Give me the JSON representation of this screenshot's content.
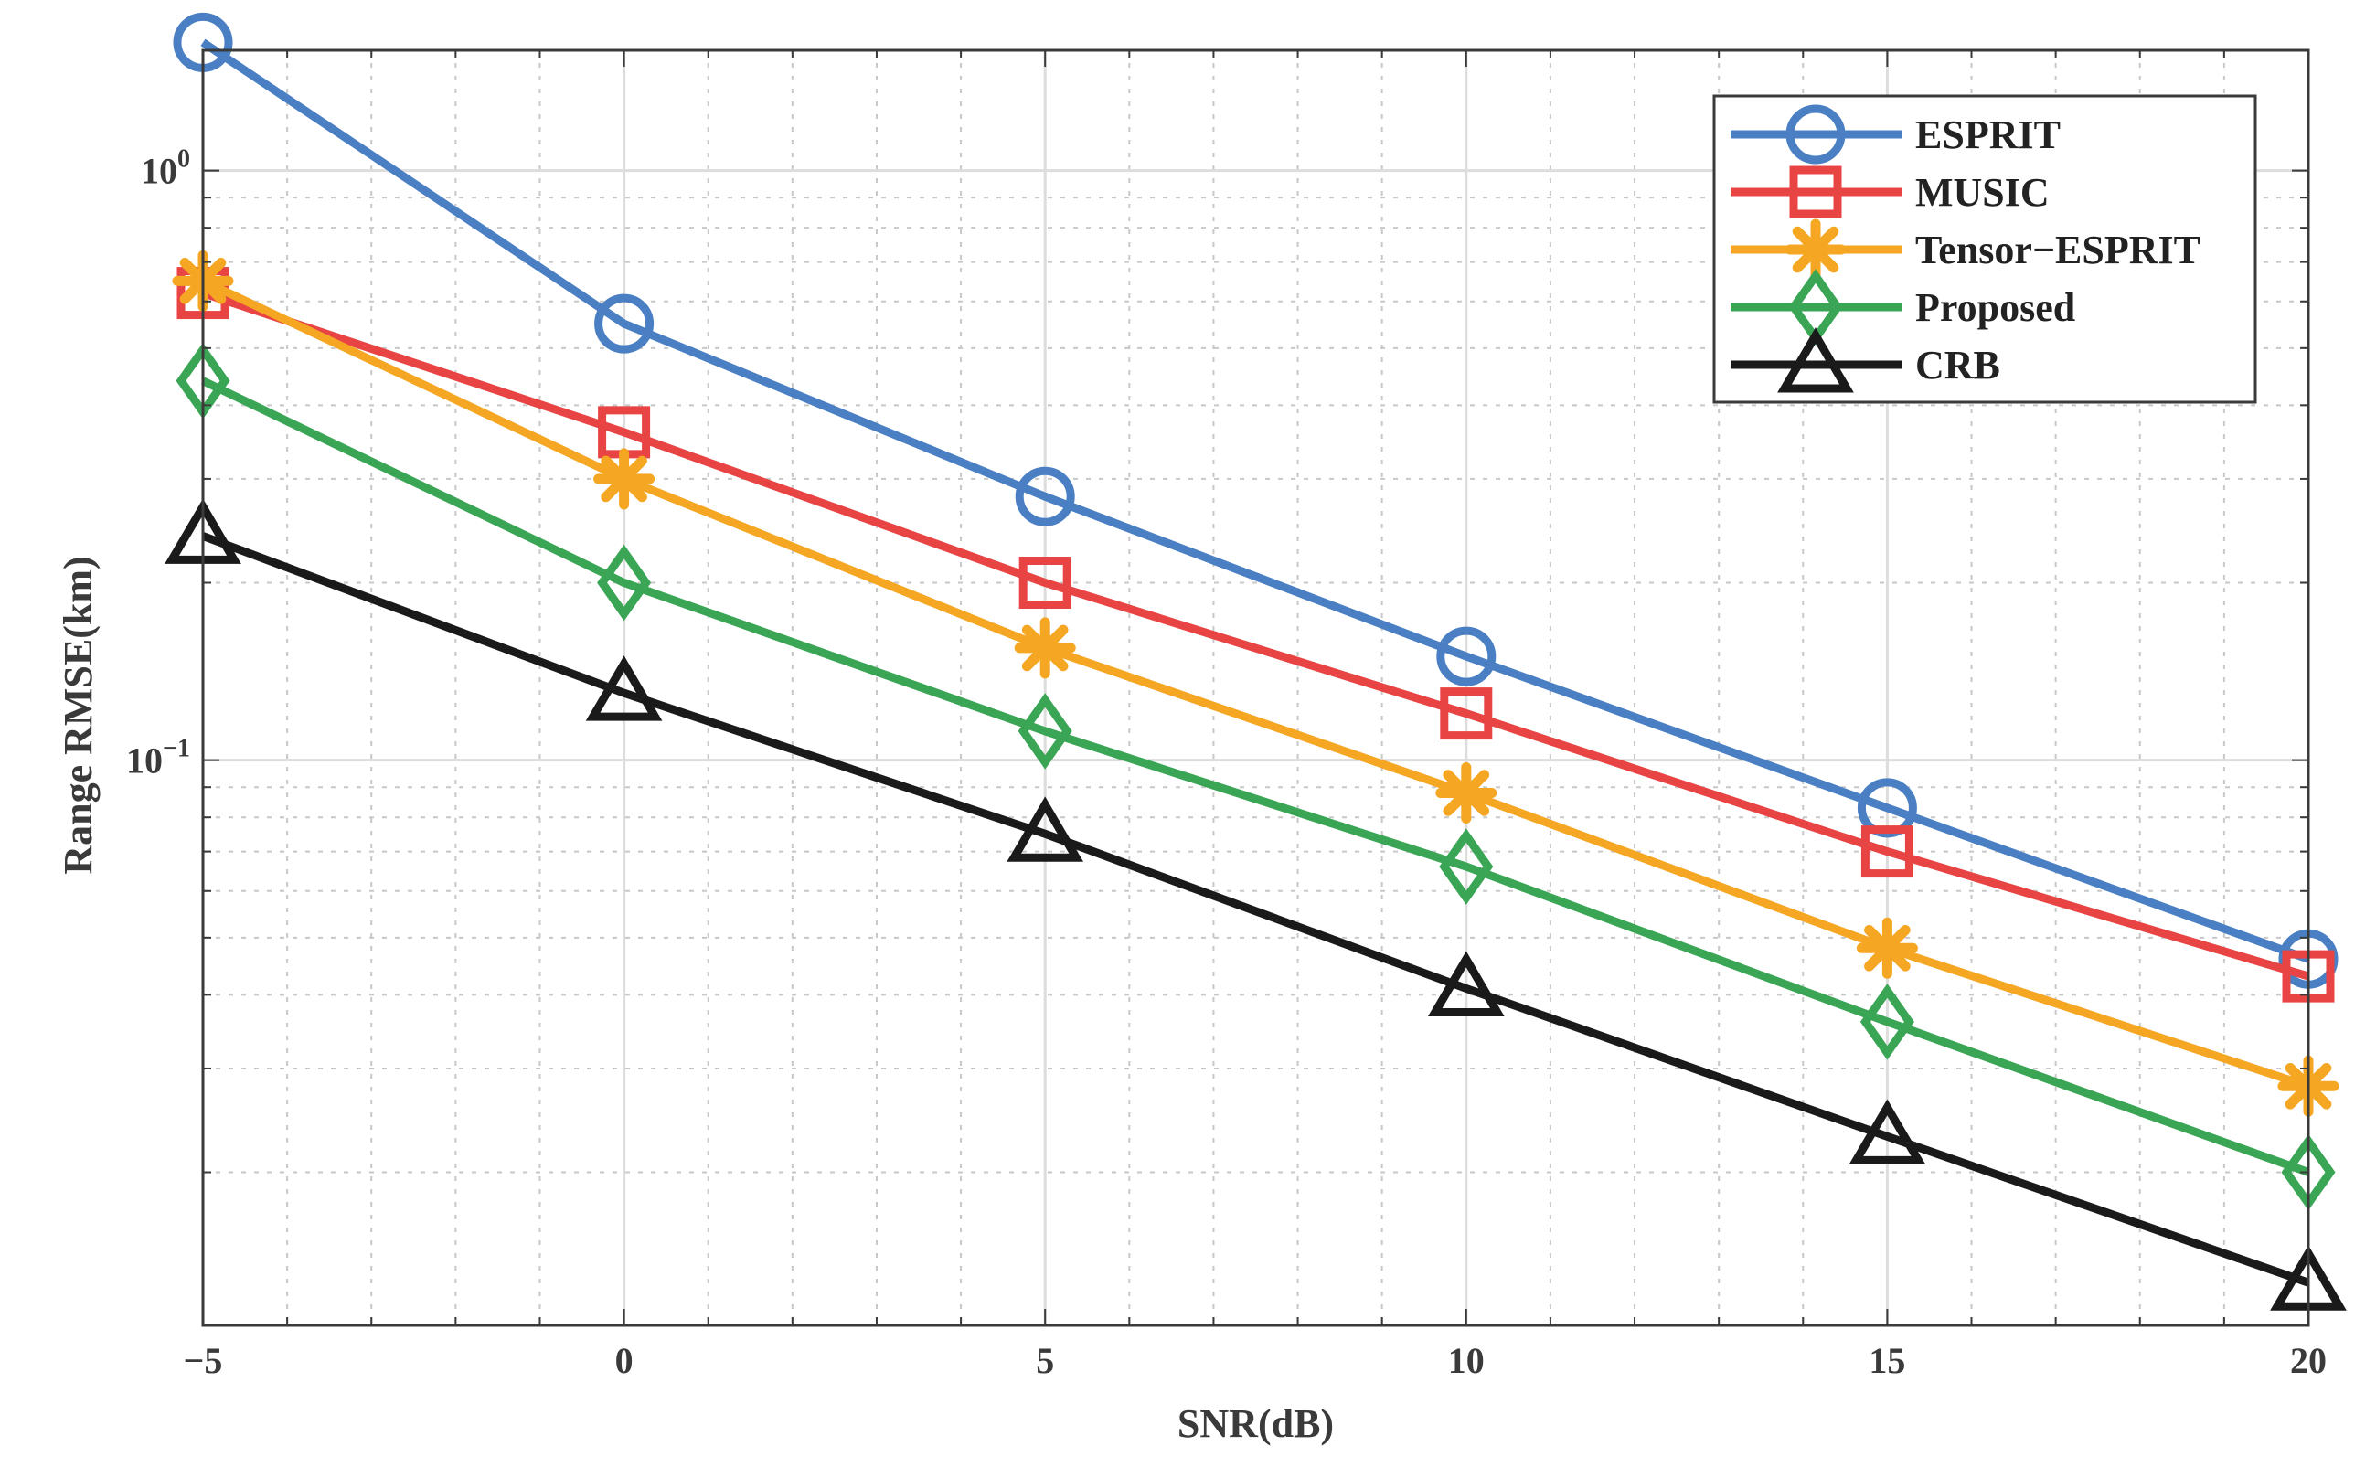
{
  "chart_data": {
    "type": "line",
    "title": "",
    "xlabel": "SNR(dB)",
    "ylabel": "Range RMSE(km)",
    "xlim": [
      -5,
      20
    ],
    "ylim": [
      0.011,
      1.6
    ],
    "yscale": "log",
    "grid": true,
    "legend_position": "top-right",
    "x": [
      -5,
      0,
      5,
      10,
      15,
      20
    ],
    "x_tick_labels": [
      "−5",
      "0",
      "5",
      "10",
      "15",
      "20"
    ],
    "y_tick_labels": [
      {
        "value": 1,
        "base": "10",
        "exponent": "0"
      },
      {
        "value": 0.1,
        "base": "10",
        "exponent": "−1"
      }
    ],
    "series": [
      {
        "name": "ESPRIT",
        "color": "#4a7fc4",
        "marker": "circle",
        "values": [
          1.65,
          0.55,
          0.28,
          0.15,
          0.083,
          0.046
        ]
      },
      {
        "name": "MUSIC",
        "color": "#e84444",
        "marker": "square",
        "values": [
          0.62,
          0.36,
          0.2,
          0.12,
          0.07,
          0.043
        ]
      },
      {
        "name": "Tensor−ESPRIT",
        "color": "#f5a623",
        "marker": "star",
        "values": [
          0.65,
          0.3,
          0.155,
          0.088,
          0.048,
          0.028
        ]
      },
      {
        "name": "Proposed",
        "color": "#3aa655",
        "marker": "diamond",
        "values": [
          0.44,
          0.2,
          0.112,
          0.066,
          0.036,
          0.02
        ]
      },
      {
        "name": "CRB",
        "color": "#1a1a1a",
        "marker": "triangle",
        "values": [
          0.24,
          0.13,
          0.075,
          0.041,
          0.023,
          0.013
        ]
      }
    ]
  }
}
